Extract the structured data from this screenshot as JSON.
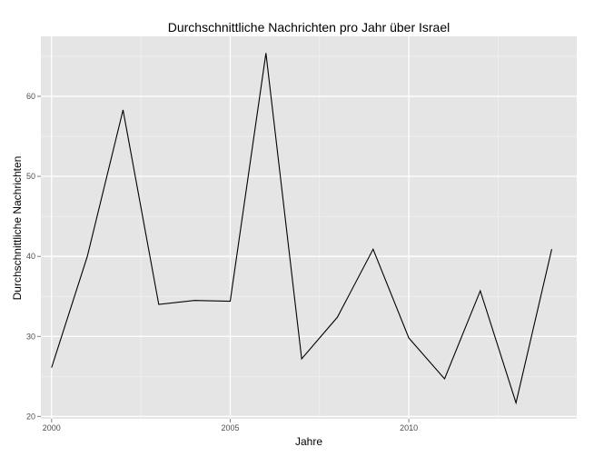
{
  "chart_data": {
    "type": "line",
    "title": "Durchschnittliche Nachrichten pro Jahr über Israel",
    "xlabel": "Jahre",
    "ylabel": "Durchschnittliche Nachrichten",
    "x": [
      2000,
      2001,
      2002,
      2003,
      2004,
      2005,
      2006,
      2007,
      2008,
      2009,
      2010,
      2011,
      2012,
      2013,
      2014
    ],
    "y": [
      26.1,
      40.0,
      58.3,
      34.0,
      34.5,
      34.4,
      65.4,
      27.2,
      32.4,
      40.9,
      29.8,
      24.7,
      35.7,
      21.7,
      40.9
    ],
    "xlim": [
      1999.7,
      2014.7
    ],
    "ylim": [
      19.7,
      67.5
    ],
    "xticks": [
      2000,
      2005,
      2010
    ],
    "yticks": [
      20,
      30,
      40,
      50,
      60
    ],
    "xtick_labels": [
      "2000",
      "2005",
      "2010"
    ],
    "ytick_labels": [
      "20",
      "30",
      "40",
      "50",
      "60"
    ],
    "grid": true,
    "background": "#e5e5e5",
    "line_color": "#000000"
  }
}
